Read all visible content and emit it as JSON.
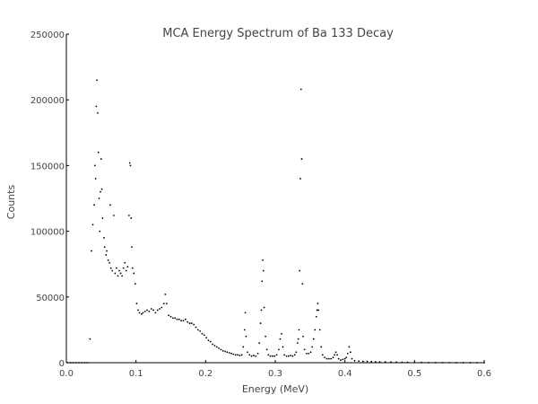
{
  "chart_data": {
    "type": "scatter",
    "title": "MCA Energy Spectrum of Ba 133 Decay",
    "xlabel": "Energy (MeV)",
    "ylabel": "Counts",
    "xlim": [
      0.0,
      0.6
    ],
    "ylim": [
      0,
      250000
    ],
    "xticks": [
      "0.0",
      "0.1",
      "0.2",
      "0.3",
      "0.4",
      "0.5",
      "0.6"
    ],
    "yticks": [
      "0",
      "50000",
      "100000",
      "150000",
      "200000",
      "250000"
    ],
    "grid": false,
    "color": "#000000",
    "series": [
      {
        "points": [
          [
            0.002,
            0
          ],
          [
            0.006,
            0
          ],
          [
            0.01,
            0
          ],
          [
            0.014,
            0
          ],
          [
            0.018,
            0
          ],
          [
            0.022,
            0
          ],
          [
            0.026,
            0
          ],
          [
            0.03,
            0
          ],
          [
            0.034,
            18000
          ],
          [
            0.036,
            85000
          ],
          [
            0.038,
            105000
          ],
          [
            0.04,
            120000
          ],
          [
            0.041,
            150000
          ],
          [
            0.042,
            140000
          ],
          [
            0.043,
            195000
          ],
          [
            0.044,
            215000
          ],
          [
            0.045,
            190000
          ],
          [
            0.046,
            160000
          ],
          [
            0.047,
            125000
          ],
          [
            0.048,
            100000
          ],
          [
            0.049,
            130000
          ],
          [
            0.05,
            155000
          ],
          [
            0.051,
            132000
          ],
          [
            0.052,
            110000
          ],
          [
            0.054,
            95000
          ],
          [
            0.055,
            88000
          ],
          [
            0.057,
            82000
          ],
          [
            0.058,
            85000
          ],
          [
            0.06,
            78000
          ],
          [
            0.062,
            76000
          ],
          [
            0.063,
            120000
          ],
          [
            0.064,
            72000
          ],
          [
            0.066,
            70000
          ],
          [
            0.068,
            112000
          ],
          [
            0.07,
            68000
          ],
          [
            0.072,
            72000
          ],
          [
            0.074,
            66000
          ],
          [
            0.076,
            70000
          ],
          [
            0.078,
            68000
          ],
          [
            0.08,
            66000
          ],
          [
            0.082,
            72000
          ],
          [
            0.084,
            76000
          ],
          [
            0.086,
            70000
          ],
          [
            0.088,
            73000
          ],
          [
            0.09,
            112000
          ],
          [
            0.091,
            152000
          ],
          [
            0.092,
            150000
          ],
          [
            0.093,
            110000
          ],
          [
            0.094,
            88000
          ],
          [
            0.095,
            72000
          ],
          [
            0.097,
            68000
          ],
          [
            0.099,
            60000
          ],
          [
            0.101,
            45000
          ],
          [
            0.103,
            40000
          ],
          [
            0.105,
            38000
          ],
          [
            0.108,
            37000
          ],
          [
            0.11,
            38000
          ],
          [
            0.113,
            39000
          ],
          [
            0.116,
            40000
          ],
          [
            0.119,
            39000
          ],
          [
            0.122,
            41000
          ],
          [
            0.125,
            40000
          ],
          [
            0.128,
            38000
          ],
          [
            0.131,
            40000
          ],
          [
            0.134,
            41000
          ],
          [
            0.137,
            42000
          ],
          [
            0.14,
            45000
          ],
          [
            0.142,
            52000
          ],
          [
            0.144,
            45000
          ],
          [
            0.147,
            36000
          ],
          [
            0.15,
            35000
          ],
          [
            0.153,
            34000
          ],
          [
            0.156,
            34000
          ],
          [
            0.159,
            33000
          ],
          [
            0.162,
            33000
          ],
          [
            0.165,
            32000
          ],
          [
            0.168,
            32000
          ],
          [
            0.171,
            33000
          ],
          [
            0.174,
            31000
          ],
          [
            0.177,
            30000
          ],
          [
            0.18,
            30000
          ],
          [
            0.183,
            29000
          ],
          [
            0.186,
            27000
          ],
          [
            0.189,
            25000
          ],
          [
            0.192,
            24000
          ],
          [
            0.195,
            22000
          ],
          [
            0.198,
            21000
          ],
          [
            0.201,
            19000
          ],
          [
            0.204,
            17000
          ],
          [
            0.207,
            16000
          ],
          [
            0.21,
            14000
          ],
          [
            0.213,
            13000
          ],
          [
            0.216,
            12000
          ],
          [
            0.219,
            11000
          ],
          [
            0.222,
            10000
          ],
          [
            0.225,
            9000
          ],
          [
            0.228,
            8500
          ],
          [
            0.231,
            8000
          ],
          [
            0.234,
            7500
          ],
          [
            0.237,
            7000
          ],
          [
            0.24,
            6500
          ],
          [
            0.243,
            6000
          ],
          [
            0.246,
            6000
          ],
          [
            0.249,
            5500
          ],
          [
            0.252,
            6000
          ],
          [
            0.254,
            12000
          ],
          [
            0.256,
            25000
          ],
          [
            0.257,
            38000
          ],
          [
            0.258,
            20000
          ],
          [
            0.26,
            8000
          ],
          [
            0.263,
            6000
          ],
          [
            0.266,
            5000
          ],
          [
            0.269,
            5500
          ],
          [
            0.272,
            5000
          ],
          [
            0.275,
            7000
          ],
          [
            0.277,
            15000
          ],
          [
            0.279,
            30000
          ],
          [
            0.28,
            40000
          ],
          [
            0.281,
            62000
          ],
          [
            0.282,
            78000
          ],
          [
            0.283,
            70000
          ],
          [
            0.284,
            42000
          ],
          [
            0.286,
            20000
          ],
          [
            0.288,
            10000
          ],
          [
            0.29,
            6000
          ],
          [
            0.293,
            5000
          ],
          [
            0.296,
            5000
          ],
          [
            0.299,
            5000
          ],
          [
            0.302,
            6000
          ],
          [
            0.305,
            10000
          ],
          [
            0.307,
            18000
          ],
          [
            0.309,
            22000
          ],
          [
            0.311,
            12000
          ],
          [
            0.313,
            6000
          ],
          [
            0.316,
            5000
          ],
          [
            0.319,
            5000
          ],
          [
            0.322,
            5500
          ],
          [
            0.325,
            5000
          ],
          [
            0.328,
            6000
          ],
          [
            0.33,
            8000
          ],
          [
            0.332,
            15000
          ],
          [
            0.333,
            18000
          ],
          [
            0.334,
            25000
          ],
          [
            0.335,
            70000
          ],
          [
            0.336,
            140000
          ],
          [
            0.337,
            208000
          ],
          [
            0.338,
            155000
          ],
          [
            0.339,
            60000
          ],
          [
            0.34,
            20000
          ],
          [
            0.342,
            10000
          ],
          [
            0.345,
            7000
          ],
          [
            0.348,
            7000
          ],
          [
            0.351,
            8000
          ],
          [
            0.353,
            12000
          ],
          [
            0.355,
            18000
          ],
          [
            0.357,
            25000
          ],
          [
            0.359,
            35000
          ],
          [
            0.36,
            40000
          ],
          [
            0.361,
            45000
          ],
          [
            0.362,
            40000
          ],
          [
            0.364,
            25000
          ],
          [
            0.366,
            12000
          ],
          [
            0.368,
            6000
          ],
          [
            0.371,
            4000
          ],
          [
            0.374,
            3000
          ],
          [
            0.377,
            3000
          ],
          [
            0.38,
            3000
          ],
          [
            0.383,
            4000
          ],
          [
            0.385,
            6000
          ],
          [
            0.387,
            8000
          ],
          [
            0.389,
            6000
          ],
          [
            0.391,
            3000
          ],
          [
            0.394,
            2000
          ],
          [
            0.397,
            2500
          ],
          [
            0.4,
            3000
          ],
          [
            0.402,
            4000
          ],
          [
            0.404,
            7000
          ],
          [
            0.406,
            12000
          ],
          [
            0.408,
            8000
          ],
          [
            0.41,
            3000
          ],
          [
            0.414,
            1500
          ],
          [
            0.42,
            1200
          ],
          [
            0.426,
            1000
          ],
          [
            0.432,
            1000
          ],
          [
            0.438,
            800
          ],
          [
            0.444,
            700
          ],
          [
            0.45,
            700
          ],
          [
            0.458,
            600
          ],
          [
            0.466,
            500
          ],
          [
            0.474,
            400
          ],
          [
            0.482,
            300
          ],
          [
            0.49,
            300
          ],
          [
            0.5,
            200
          ],
          [
            0.51,
            200
          ],
          [
            0.52,
            100
          ],
          [
            0.53,
            100
          ],
          [
            0.54,
            100
          ],
          [
            0.55,
            100
          ],
          [
            0.56,
            50
          ],
          [
            0.57,
            50
          ],
          [
            0.58,
            50
          ],
          [
            0.59,
            0
          ],
          [
            0.6,
            0
          ]
        ]
      }
    ]
  }
}
